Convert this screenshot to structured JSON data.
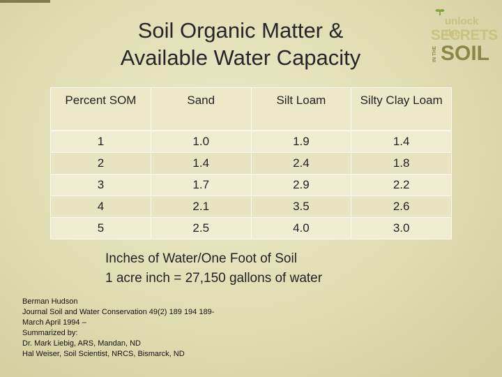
{
  "title": {
    "line1": "Soil Organic Matter &",
    "line2": "Available Water Capacity"
  },
  "logo": {
    "tagline": "unlock the",
    "secrets": "SECRETS",
    "in_the": "IN THE",
    "soil": "SOIL"
  },
  "table": {
    "headers": [
      "Percent SOM",
      "Sand",
      "Silt Loam",
      "Silty Clay Loam"
    ],
    "rows": [
      [
        "1",
        "1.0",
        "1.9",
        "1.4"
      ],
      [
        "2",
        "1.4",
        "2.4",
        "1.8"
      ],
      [
        "3",
        "1.7",
        "2.9",
        "2.2"
      ],
      [
        "4",
        "2.1",
        "3.5",
        "2.6"
      ],
      [
        "5",
        "2.5",
        "4.0",
        "3.0"
      ]
    ]
  },
  "note": {
    "line1": "Inches of Water/One Foot of Soil",
    "line2": "1 acre inch =  27,150 gallons of water"
  },
  "citation": [
    "Berman Hudson",
    "Journal Soil and Water Conservation 49(2) 189 194 189-",
    "March April 1994 –",
    "Summarized by:",
    "Dr. Mark Liebig, ARS, Mandan, ND",
    "Hal Weiser, Soil Scientist, NRCS, Bismarck, ND"
  ]
}
